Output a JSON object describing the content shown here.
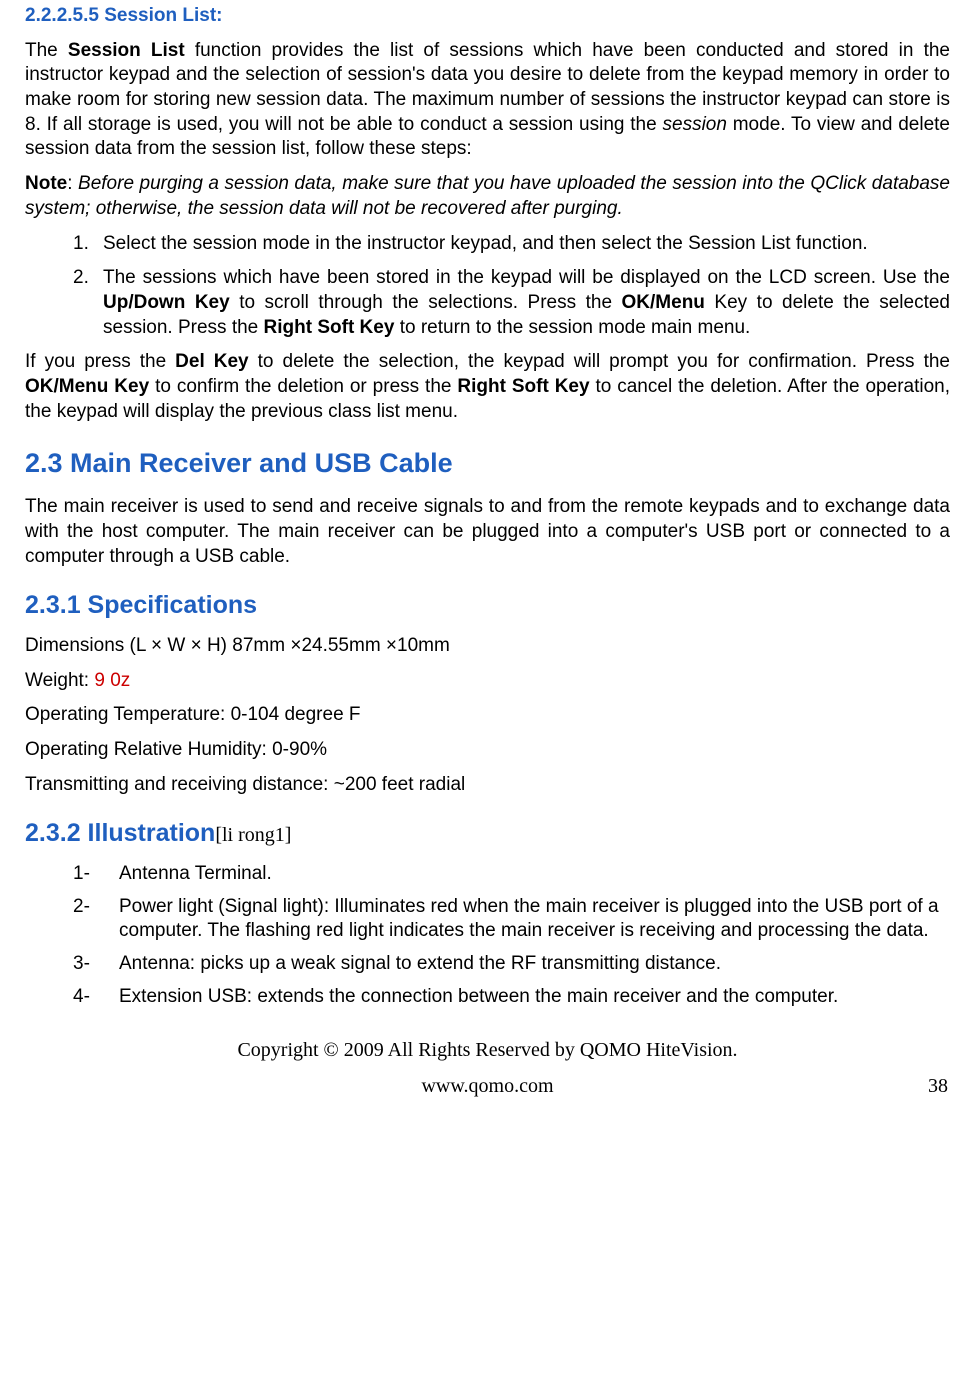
{
  "h_session_list": "2.2.2.5.5  Session List:",
  "p1_a": "The ",
  "p1_b": "Session List",
  "p1_c": " function provides the list of sessions which have been conducted and stored in the instructor keypad and the selection of session's data you desire to delete from the keypad memory in order to make room for storing new session data. The maximum number of sessions the instructor keypad can store is 8. If all storage is used, you will not be able to conduct a session using the ",
  "p1_d": "session",
  "p1_e": " mode. To view and delete session data from the session list, follow these steps:",
  "note_label": "Note",
  "note_colon": ":  ",
  "note_body": "Before purging a session data, make sure that you have uploaded the session into the QClick database system; otherwise, the session data will not be recovered after purging.",
  "ol1": {
    "n1": "1.",
    "t1": "Select the session mode in the instructor keypad, and then select the Session List function.",
    "n2": "2.",
    "t2a": "The sessions which have been stored in the keypad will be displayed on the LCD screen. Use the ",
    "t2b": "Up/Down Key",
    "t2c": " to scroll through the selections. Press the ",
    "t2d": "OK/Menu",
    "t2e": " Key to delete the selected session. Press the ",
    "t2f": "Right Soft Key",
    "t2g": " to return to the session mode main menu."
  },
  "p3a": "If you press the ",
  "p3b": "Del Key",
  "p3c": " to delete the selection, the keypad will prompt you for confirmation. Press the ",
  "p3d": "OK/Menu Key",
  "p3e": " to confirm the deletion or press the ",
  "p3f": "Right Soft Key",
  "p3g": " to cancel the deletion. After the operation, the keypad will display the previous class list menu.",
  "h_main": "2.3   Main Receiver and USB Cable",
  "p_main": "The main receiver is used to send and receive signals to and from the remote keypads and to exchange data with the host computer. The main receiver can be plugged into a computer's USB port or connected to a computer through a USB cable.",
  "h_spec": "2.3.1  Specifications",
  "spec1": "Dimensions (L × W × H) 87mm ×24.55mm ×10mm",
  "spec2a": "Weight: ",
  "spec2b": "9 0z",
  "spec3": "Operating Temperature: 0-104 degree F",
  "spec4": "Operating Relative Humidity: 0-90%",
  "spec5": "Transmitting and receiving distance: ~200 feet radial",
  "h_illus": "2.3.2  Illustration",
  "illus_tag": "[li rong1]",
  "ol2": {
    "n1": "1-",
    "t1": "Antenna Terminal.",
    "n2": "2-",
    "t2": "Power light (Signal light): Illuminates red when the main receiver is plugged into the USB port of a computer. The flashing red light indicates the main receiver is receiving and processing the data.",
    "n3": "3-",
    "t3": "Antenna: picks up a weak signal to extend the RF transmitting distance.",
    "n4": "4-",
    "t4": "Extension USB: extends the connection between the main receiver and the computer."
  },
  "footer1": "Copyright © 2009 All Rights Reserved by QOMO HiteVision.",
  "footer2": "www.qomo.com",
  "page_num": "38"
}
